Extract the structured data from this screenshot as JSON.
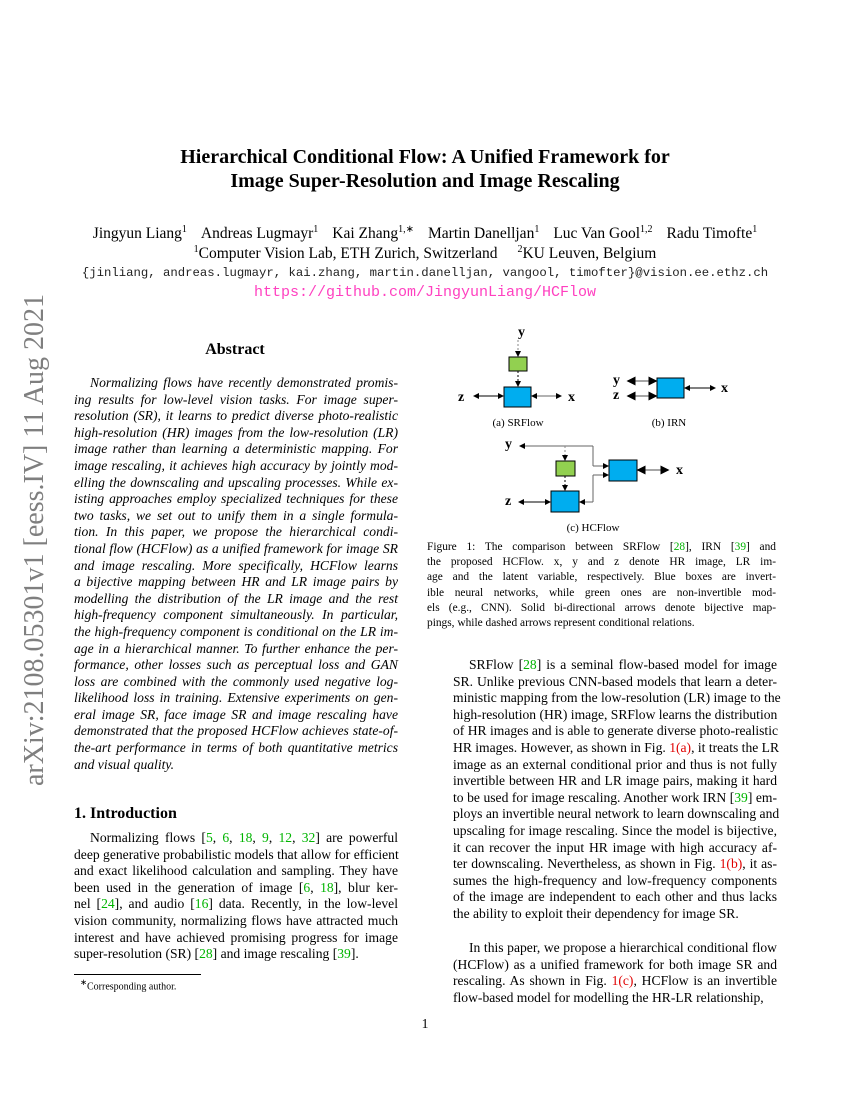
{
  "sidebar": {
    "arxiv_id": "arXiv:2108.05301v1  [eess.IV]  11 Aug 2021"
  },
  "title": {
    "line1": "Hierarchical Conditional Flow: A Unified Framework for",
    "line2": "Image Super-Resolution and Image Rescaling"
  },
  "authors": [
    {
      "name": "Jingyun Liang",
      "sup": "1"
    },
    {
      "name": "Andreas Lugmayr",
      "sup": "1"
    },
    {
      "name": "Kai Zhang",
      "sup": "1,∗"
    },
    {
      "name": "Martin Danelljan",
      "sup": "1"
    },
    {
      "name": "Luc Van Gool",
      "sup": "1,2"
    },
    {
      "name": "Radu Timofte",
      "sup": "1"
    }
  ],
  "affiliations": [
    {
      "sup": "1",
      "name": "Computer Vision Lab, ETH Zurich, Switzerland"
    },
    {
      "sup": "2",
      "name": "KU Leuven, Belgium"
    }
  ],
  "emails": "{jinliang, andreas.lugmayr, kai.zhang, martin.danelljan, vangool, timofter}@vision.ee.ethz.ch",
  "url": "https://github.com/JingyunLiang/HCFlow",
  "abstract": {
    "heading": "Abstract",
    "lines": [
      "Normalizing flows have recently demonstrated promis-",
      "ing results for low-level vision tasks. For image super-",
      "resolution (SR), it learns to predict diverse photo-realistic",
      "high-resolution (HR) images from the low-resolution (LR)",
      "image rather than learning a deterministic mapping. For",
      "image rescaling, it achieves high accuracy by jointly mod-",
      "elling the downscaling and upscaling processes. While ex-",
      "isting approaches employ specialized techniques for these",
      "two tasks, we set out to unify them in a single formula-",
      "tion. In this paper, we propose the hierarchical condi-",
      "tional flow (HCFlow) as a unified framework for image SR",
      "and image rescaling. More specifically, HCFlow learns",
      "a bijective mapping between HR and LR image pairs by",
      "modelling the distribution of the LR image and the rest",
      "high-frequency component simultaneously. In particular,",
      "the high-frequency component is conditional on the LR im-",
      "age in a hierarchical manner. To further enhance the per-",
      "formance, other losses such as perceptual loss and GAN",
      "loss are combined with the commonly used negative log-",
      "likelihood loss in training. Extensive experiments on gen-",
      "eral image SR, face image SR and image rescaling have",
      "demonstrated that the proposed HCFlow achieves state-of-",
      "the-art performance in terms of both quantitative metrics",
      "and visual quality."
    ]
  },
  "intro": {
    "heading": "1. Introduction",
    "lines": [
      "Normalizing flows [{g:5}, {g:6}, {g:18}, {g:9}, {g:12}, {g:32}] are powerful",
      "deep generative probabilistic models that allow for efficient",
      "and exact likelihood calculation and sampling. They have",
      "been used in the generation of image [{g:6}, {g:18}], blur ker-",
      "nel [{g:24}], and audio [{g:16}] data. Recently, in the low-level",
      "vision community, normalizing flows have attracted much",
      "interest and have achieved promising progress for image",
      "super-resolution (SR) [{g:28}] and image rescaling [{g:39}]."
    ]
  },
  "footnote": {
    "mark": "∗",
    "text": "Corresponding author."
  },
  "figure": {
    "labels": {
      "y": "y",
      "z": "z",
      "x": "x"
    },
    "sub_a": "(a)  SRFlow",
    "sub_b": "(b)  IRN",
    "sub_c": "(c)  HCFlow",
    "colors": {
      "invertible": "#00adef",
      "non_invertible": "#92d050"
    },
    "caption": [
      "Figure 1: The comparison between SRFlow [{g:28}], IRN [{g:39}] and",
      "the proposed HCFlow.  x, y and z denote HR image, LR im-",
      "age and the latent variable, respectively.  Blue boxes are invert-",
      "ible neural networks, while green ones are non-invertible mod-",
      "els (e.g., CNN). Solid bi-directional arrows denote bijective map-",
      "pings, while dashed arrows represent conditional relations."
    ]
  },
  "right": {
    "para1": [
      "SRFlow [{g:28}] is a seminal flow-based model for image",
      "SR. Unlike previous CNN-based models that learn a deter-",
      "ministic mapping from the low-resolution (LR) image to the",
      "high-resolution (HR) image, SRFlow learns the distribution",
      "of HR images and is able to generate diverse photo-realistic",
      "HR images. However, as shown in Fig. {r:1(a)}, it treats the LR",
      "image as an external conditional prior and thus is not fully",
      "invertible between HR and LR image pairs, making it hard",
      "to be used for image rescaling. Another work IRN [{g:39}] em-",
      "ploys an invertible neural network to learn downscaling and",
      "upscaling for image rescaling. Since the model is bijective,",
      "it can recover the input HR image with high accuracy af-",
      "ter downscaling. Nevertheless, as shown in Fig. {r:1(b)}, it as-",
      "sumes the high-frequency and low-frequency components",
      "of the image are independent to each other and thus lacks",
      "the ability to exploit their dependency for image SR."
    ],
    "para2": [
      "In this paper, we propose a hierarchical conditional flow",
      "(HCFlow) as a unified framework for both image SR and",
      "rescaling.  As shown in Fig. {r:1(c)}, HCFlow is an invertible",
      "flow-based model for modelling the HR-LR relationship,"
    ]
  },
  "page_number": "1"
}
